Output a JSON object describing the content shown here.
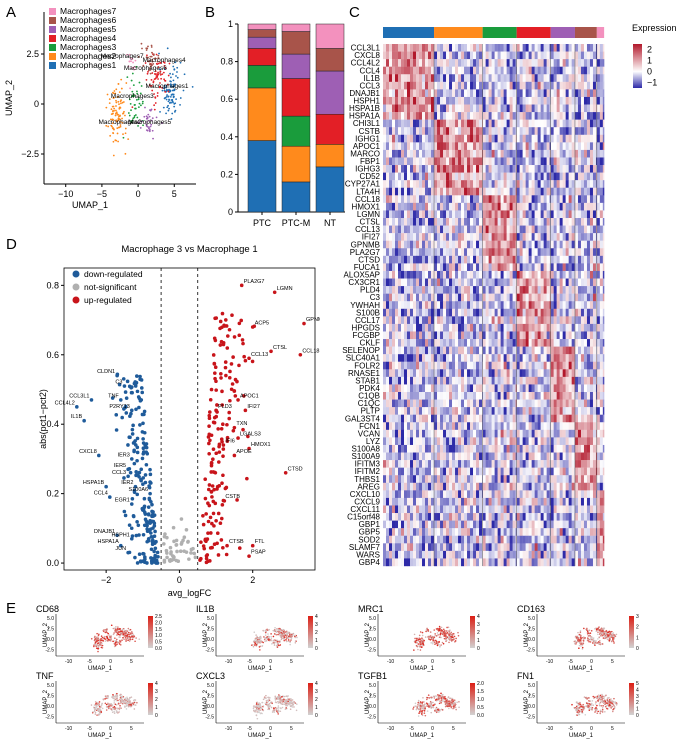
{
  "figure": {
    "panel_letters": [
      "A",
      "B",
      "C",
      "D",
      "E"
    ]
  },
  "colors": {
    "Macrophages1": "#1f6fb4",
    "Macrophages2": "#ff8a1c",
    "Macrophages3": "#1a9c3c",
    "Macrophages4": "#e31f26",
    "Macrophages5": "#9e5fb4",
    "Macrophages6": "#a8544a",
    "Macrophages7": "#f391be",
    "down": "#1f5b9a",
    "ns": "#b0b0b0",
    "up": "#c8141a"
  },
  "chart_data": [
    {
      "id": "A",
      "type": "scatter",
      "title": "",
      "xlabel": "UMAP_1",
      "ylabel": "UMAP_2",
      "xlim": [
        -13,
        8
      ],
      "ylim": [
        -4,
        4.6
      ],
      "xticks": [
        -10,
        -5,
        0,
        5
      ],
      "yticks": [
        -2.5,
        0,
        2.5
      ],
      "legend": [
        "Macrophages7",
        "Macrophages6",
        "Macrophages5",
        "Macrophages4",
        "Macrophages3",
        "Macrophages2",
        "Macrophages1"
      ],
      "legend_position": "top-left",
      "cluster_labels": [
        {
          "text": "Macrophages7",
          "x": -2.2,
          "y": 2.3
        },
        {
          "text": "Macrophages6",
          "x": 1.0,
          "y": 1.7
        },
        {
          "text": "Macrophages4",
          "x": 3.6,
          "y": 2.1
        },
        {
          "text": "Macrophages3",
          "x": -0.8,
          "y": 0.3
        },
        {
          "text": "Macrophages1",
          "x": 4.0,
          "y": 0.8
        },
        {
          "text": "Macrophages2",
          "x": -2.5,
          "y": -1.0
        },
        {
          "text": "Macrophages5",
          "x": 1.6,
          "y": -1.0
        }
      ],
      "clusters": [
        {
          "name": "Macrophages1",
          "cx": 4.5,
          "cy": 0.6,
          "sx": 1.3,
          "sy": 1.1,
          "n": 95
        },
        {
          "name": "Macrophages2",
          "cx": -2.9,
          "cy": -0.5,
          "sx": 1.1,
          "sy": 1.4,
          "n": 100
        },
        {
          "name": "Macrophages3",
          "cx": -0.4,
          "cy": 0.2,
          "sx": 1.0,
          "sy": 0.9,
          "n": 45
        },
        {
          "name": "Macrophages4",
          "cx": 2.8,
          "cy": 1.3,
          "sx": 1.4,
          "sy": 1.0,
          "n": 70
        },
        {
          "name": "Macrophages5",
          "cx": 1.4,
          "cy": -0.9,
          "sx": 1.0,
          "sy": 0.6,
          "n": 35
        },
        {
          "name": "Macrophages6",
          "cx": 1.8,
          "cy": 2.2,
          "sx": 1.2,
          "sy": 0.6,
          "n": 40
        },
        {
          "name": "Macrophages7",
          "cx": -1.0,
          "cy": 2.0,
          "sx": 0.8,
          "sy": 0.5,
          "n": 15
        }
      ]
    },
    {
      "id": "B",
      "type": "bar",
      "stacked": true,
      "categories": [
        "PTC",
        "PTC-M",
        "NT"
      ],
      "ylim": [
        0,
        1
      ],
      "yticks": [
        0,
        0.2,
        0.4,
        0.6,
        0.8,
        1
      ],
      "ytick_labels": [
        "0",
        "0.2",
        "0.4",
        "0.6",
        "0.8",
        "1"
      ],
      "series": [
        {
          "name": "Macrophages1",
          "values": [
            0.38,
            0.16,
            0.24
          ]
        },
        {
          "name": "Macrophages2",
          "values": [
            0.28,
            0.19,
            0.12
          ]
        },
        {
          "name": "Macrophages3",
          "values": [
            0.12,
            0.16,
            0.0
          ]
        },
        {
          "name": "Macrophages4",
          "values": [
            0.09,
            0.2,
            0.16
          ]
        },
        {
          "name": "Macrophages5",
          "values": [
            0.06,
            0.13,
            0.23
          ]
        },
        {
          "name": "Macrophages6",
          "values": [
            0.04,
            0.12,
            0.12
          ]
        },
        {
          "name": "Macrophages7",
          "values": [
            0.03,
            0.04,
            0.13
          ]
        }
      ]
    },
    {
      "id": "C",
      "type": "heatmap",
      "legend_title": "Expression",
      "legend_ticks": [
        2,
        1,
        0,
        -1
      ],
      "legend_tick_labels": [
        "2",
        "1",
        "0",
        "−1"
      ],
      "legend_range": [
        -1.5,
        2.5
      ],
      "colormap": [
        "#2d2aa8",
        "#ffffff",
        "#b2182b"
      ],
      "column_groups": [
        {
          "name": "Macrophages1",
          "fraction": 0.21
        },
        {
          "name": "Macrophages2",
          "fraction": 0.2
        },
        {
          "name": "Macrophages3",
          "fraction": 0.14
        },
        {
          "name": "Macrophages4",
          "fraction": 0.14
        },
        {
          "name": "Macrophages5",
          "fraction": 0.1
        },
        {
          "name": "Macrophages6",
          "fraction": 0.09
        },
        {
          "name": "Macrophages7",
          "fraction": 0.03
        }
      ],
      "gene_blocks": [
        {
          "group": "Macrophages1",
          "genes": [
            "CCL3L1",
            "CXCL8",
            "CCL4L2",
            "CCL4",
            "IL1B",
            "CCL3",
            "DNAJB1",
            "HSPH1",
            "HSPA1B",
            "HSPA1A"
          ]
        },
        {
          "group": "Macrophages2",
          "genes": [
            "CHI3L1",
            "CSTB",
            "IGHG1",
            "APOC1",
            "MARCO",
            "FBP1",
            "IGHG3",
            "CD52",
            "CYP27A1",
            "LTA4H"
          ]
        },
        {
          "group": "Macrophages3",
          "genes": [
            "CCL18",
            "HMOX1",
            "LGMN",
            "CTSL",
            "CCL13",
            "IFI27",
            "GPNMB",
            "PLA2G7",
            "CTSD",
            "FUCA1"
          ]
        },
        {
          "group": "Macrophages4",
          "genes": [
            "ALOX5AP",
            "CX3CR1",
            "PLD4",
            "C3",
            "YWHAH",
            "S100B",
            "CCL17",
            "HPGDS",
            "FCGBP",
            "CKLF"
          ]
        },
        {
          "group": "Macrophages5",
          "genes": [
            "SELENOP",
            "SLC40A1",
            "FOLR2",
            "RNASE1",
            "STAB1",
            "PDK4",
            "C1QB",
            "C1QC",
            "PLTP",
            "GAL3ST4"
          ]
        },
        {
          "group": "Macrophages6",
          "genes": [
            "FCN1",
            "VCAN",
            "LYZ",
            "S100A8",
            "S100A9",
            "IFITM3",
            "IFITM2",
            "THBS1",
            "AREG"
          ]
        },
        {
          "group": "Macrophages7",
          "genes": [
            "CXCL10",
            "CXCL9",
            "CXCL11",
            "C15orf48",
            "GBP1",
            "GBP5",
            "SOD2",
            "SLAMF7",
            "WARS",
            "GBP4"
          ]
        }
      ]
    },
    {
      "id": "D",
      "type": "scatter",
      "title": "Macrophage 3 vs Macrophage 1",
      "xlabel": "avg_logFC",
      "ylabel": "abs(pct1−pct2)",
      "xlim": [
        -3.15,
        3.7
      ],
      "ylim": [
        -0.02,
        0.85
      ],
      "xticks": [
        -2,
        0,
        2
      ],
      "xtick_labels": [
        "−2",
        "0",
        "2"
      ],
      "yticks": [
        0.0,
        0.2,
        0.4,
        0.6,
        0.8
      ],
      "ytick_labels": [
        "0.0",
        "0.2",
        "0.4",
        "0.6",
        "0.8"
      ],
      "thresholds": [
        -0.5,
        0.5
      ],
      "legend": [
        {
          "key": "down",
          "label": "down-regulated"
        },
        {
          "key": "ns",
          "label": "not-significant"
        },
        {
          "key": "up",
          "label": "up-regulated"
        }
      ],
      "legend_position": "top-left",
      "labeled_points": [
        {
          "gene": "PLA2G7",
          "x": 1.7,
          "y": 0.8,
          "cls": "up"
        },
        {
          "gene": "LGMN",
          "x": 2.6,
          "y": 0.78,
          "cls": "up"
        },
        {
          "gene": "GPNMB",
          "x": 3.4,
          "y": 0.69,
          "cls": "up"
        },
        {
          "gene": "ACP5",
          "x": 2.0,
          "y": 0.68,
          "cls": "up"
        },
        {
          "gene": "CTSL",
          "x": 2.5,
          "y": 0.61,
          "cls": "up"
        },
        {
          "gene": "CCL18",
          "x": 3.3,
          "y": 0.6,
          "cls": "up"
        },
        {
          "gene": "CCL13",
          "x": 1.9,
          "y": 0.59,
          "cls": "up"
        },
        {
          "gene": "APOC1",
          "x": 1.6,
          "y": 0.47,
          "cls": "up"
        },
        {
          "gene": "PLD3",
          "x": 1.0,
          "y": 0.44,
          "cls": "up"
        },
        {
          "gene": "IFI27",
          "x": 1.8,
          "y": 0.44,
          "cls": "up"
        },
        {
          "gene": "TXN",
          "x": 1.5,
          "y": 0.39,
          "cls": "up"
        },
        {
          "gene": "LGALS3",
          "x": 1.6,
          "y": 0.36,
          "cls": "up"
        },
        {
          "gene": "IFI6",
          "x": 1.2,
          "y": 0.34,
          "cls": "up"
        },
        {
          "gene": "HMOX1",
          "x": 1.9,
          "y": 0.33,
          "cls": "up"
        },
        {
          "gene": "APOE",
          "x": 1.5,
          "y": 0.31,
          "cls": "up"
        },
        {
          "gene": "CTSD",
          "x": 2.9,
          "y": 0.26,
          "cls": "up"
        },
        {
          "gene": "CSTB",
          "x": 1.2,
          "y": 0.18,
          "cls": "up"
        },
        {
          "gene": "CTSB",
          "x": 1.3,
          "y": 0.05,
          "cls": "up"
        },
        {
          "gene": "FTL",
          "x": 2.0,
          "y": 0.05,
          "cls": "up"
        },
        {
          "gene": "PSAP",
          "x": 1.9,
          "y": 0.02,
          "cls": "up"
        },
        {
          "gene": "CLDN1",
          "x": -1.7,
          "y": 0.54,
          "cls": "down"
        },
        {
          "gene": "C3",
          "x": -1.5,
          "y": 0.51,
          "cls": "down"
        },
        {
          "gene": "TNF",
          "x": -1.6,
          "y": 0.47,
          "cls": "down"
        },
        {
          "gene": "CCL3L1",
          "x": -2.4,
          "y": 0.47,
          "cls": "down"
        },
        {
          "gene": "P2RY13",
          "x": -1.3,
          "y": 0.44,
          "cls": "down"
        },
        {
          "gene": "CCL4L2",
          "x": -2.8,
          "y": 0.45,
          "cls": "down"
        },
        {
          "gene": "IL1B",
          "x": -2.6,
          "y": 0.41,
          "cls": "down"
        },
        {
          "gene": "CXCL8",
          "x": -2.2,
          "y": 0.31,
          "cls": "down"
        },
        {
          "gene": "IER3",
          "x": -1.3,
          "y": 0.3,
          "cls": "down"
        },
        {
          "gene": "IER5",
          "x": -1.4,
          "y": 0.27,
          "cls": "down"
        },
        {
          "gene": "CCL3",
          "x": -1.4,
          "y": 0.25,
          "cls": "down"
        },
        {
          "gene": "HSPA1B",
          "x": -2.0,
          "y": 0.22,
          "cls": "down"
        },
        {
          "gene": "IER2",
          "x": -1.2,
          "y": 0.22,
          "cls": "down"
        },
        {
          "gene": "S100A6",
          "x": -0.8,
          "y": 0.2,
          "cls": "down"
        },
        {
          "gene": "CCL4",
          "x": -1.9,
          "y": 0.19,
          "cls": "down"
        },
        {
          "gene": "EGR1",
          "x": -1.3,
          "y": 0.17,
          "cls": "down"
        },
        {
          "gene": "DNAJB1",
          "x": -1.7,
          "y": 0.08,
          "cls": "down"
        },
        {
          "gene": "HSPH1",
          "x": -1.3,
          "y": 0.07,
          "cls": "down"
        },
        {
          "gene": "HSPA1A",
          "x": -1.6,
          "y": 0.05,
          "cls": "down"
        },
        {
          "gene": "JUN",
          "x": -1.4,
          "y": 0.03,
          "cls": "down"
        }
      ]
    },
    {
      "id": "E",
      "type": "scatter",
      "xlabel": "UMAP_1",
      "ylabel": "UMAP_2",
      "xticks": [
        -10,
        -5,
        0,
        5
      ],
      "yticks": [
        -2.5,
        0,
        2.5,
        5
      ],
      "ytick_labels": [
        "-2.5",
        "0.0",
        "2.5",
        "5.0"
      ],
      "plots": [
        {
          "gene": "CD68",
          "scale_labels": [
            "2.5",
            "2.0",
            "1.5",
            "1.0",
            "0.5",
            "0.0"
          ],
          "mean": 0.8
        },
        {
          "gene": "IL1B",
          "scale_labels": [
            "4",
            "3",
            "2",
            "1",
            "0"
          ],
          "mean": 0.35
        },
        {
          "gene": "MRC1",
          "scale_labels": [
            "4",
            "3",
            "2",
            "1",
            "0"
          ],
          "mean": 0.75
        },
        {
          "gene": "CD163",
          "scale_labels": [
            "3",
            "2",
            "1",
            "0"
          ],
          "mean": 0.65
        },
        {
          "gene": "TNF",
          "scale_labels": [
            "4",
            "3",
            "2",
            "1",
            "0"
          ],
          "mean": 0.3
        },
        {
          "gene": "CXCL3",
          "scale_labels": [
            "4",
            "3",
            "2",
            "1",
            "0"
          ],
          "mean": 0.2
        },
        {
          "gene": "TGFB1",
          "scale_labels": [
            "2.0",
            "1.5",
            "1.0",
            "0.5",
            "0.0"
          ],
          "mean": 0.6
        },
        {
          "gene": "FN1",
          "scale_labels": [
            "5",
            "4",
            "3",
            "2",
            "1",
            "0"
          ],
          "mean": 0.55
        }
      ]
    }
  ]
}
